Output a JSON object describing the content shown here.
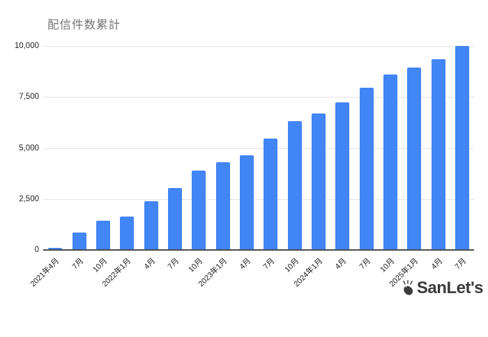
{
  "chart_data": {
    "type": "bar",
    "title": "配信件数累計",
    "categories": [
      "2021年4月",
      "7月",
      "10月",
      "2022年1月",
      "4月",
      "7月",
      "10月",
      "2023年1月",
      "4月",
      "7月",
      "10月",
      "2024年1月",
      "4月",
      "7月",
      "10月",
      "2025年1月",
      "4月",
      "7月"
    ],
    "values": [
      100,
      850,
      1450,
      1650,
      2400,
      3050,
      3900,
      4300,
      4650,
      5450,
      6300,
      6700,
      7250,
      7950,
      8600,
      8950,
      9350,
      10000
    ],
    "xlabel": "",
    "ylabel": "",
    "ylim": [
      0,
      10000
    ],
    "y_tick_values": [
      0,
      2500,
      5000,
      7500,
      10000
    ],
    "y_tick_labels": [
      "0",
      "2,500",
      "5,000",
      "7,500",
      "10,000"
    ],
    "grid": true,
    "legend": "none",
    "bar_color": "#4285F4"
  },
  "branding": {
    "logo_text": "SanLet's",
    "logo_icon": "clapping-hands-icon"
  },
  "colors": {
    "background": "#ffffff",
    "bar": "#4285F4",
    "title": "#757575",
    "axis_label": "#1a1a1a",
    "gridline": "#e3e3e3",
    "baseline": "#4a4a4a",
    "logo": "#3b3b3b"
  }
}
